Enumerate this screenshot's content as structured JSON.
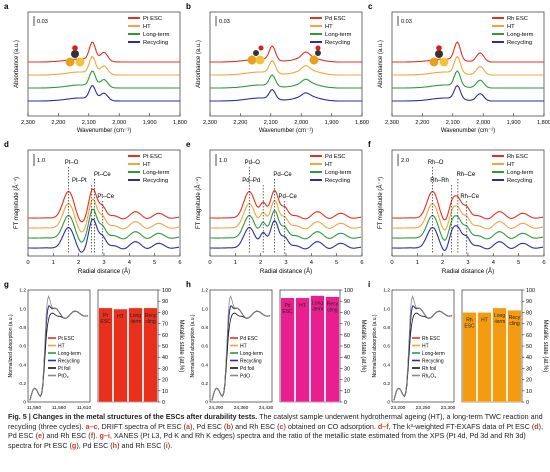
{
  "panels_drift": [
    {
      "letter": "a",
      "scale": "0.03",
      "xlabel": "Wavenumber (cm⁻¹)",
      "ylabel": "Absorbance (a.u.)",
      "xticks": [
        "2,300",
        "2,200",
        "2,100",
        "2,000",
        "1,900",
        "1,800"
      ],
      "legend": [
        "Pt ESC",
        "HT",
        "Long-term",
        "Recycling"
      ],
      "colors": [
        "#e8301c",
        "#f2a53b",
        "#2e9a3a",
        "#2a2ea8"
      ],
      "peak_positions": [
        2088,
        2050
      ],
      "molecule": "pt"
    },
    {
      "letter": "b",
      "scale": "0.03",
      "xlabel": "Wavenumber (cm⁻¹)",
      "ylabel": "Absorbance (a.u.)",
      "xticks": [
        "2,300",
        "2,200",
        "2,100",
        "2,000",
        "1,900",
        "1,800"
      ],
      "legend": [
        "Pd ESC",
        "HT",
        "Long-term",
        "Recycling"
      ],
      "colors": [
        "#e8301c",
        "#f2a53b",
        "#2e9a3a",
        "#2a2ea8"
      ],
      "peak_positions": [
        2095,
        1985
      ],
      "molecule": "pd"
    },
    {
      "letter": "c",
      "scale": "0.03",
      "xlabel": "Wavenumber (cm⁻¹)",
      "ylabel": "Absorbance (a.u.)",
      "xticks": [
        "2,300",
        "2,200",
        "2,100",
        "2,000",
        "1,900",
        "1,800"
      ],
      "legend": [
        "Rh ESC",
        "HT",
        "Long-term",
        "Recycling"
      ],
      "colors": [
        "#e8301c",
        "#f2a53b",
        "#2e9a3a",
        "#2a2ea8"
      ],
      "peak_positions": [
        2085,
        2010
      ],
      "molecule": "rh"
    }
  ],
  "panels_exafs": [
    {
      "letter": "d",
      "scale": "1.0",
      "xlabel": "Radial distance (Å)",
      "ylabel": "FT magnitude (Å⁻⁴)",
      "xticks": [
        "0",
        "1",
        "2",
        "3",
        "4",
        "5",
        "6"
      ],
      "legend": [
        "Pt ESC",
        "HT",
        "Long-term",
        "Recycling"
      ],
      "colors": [
        "#e8301c",
        "#f2a53b",
        "#2e9a3a",
        "#2a2ea8"
      ],
      "annotations": [
        "Pt–O",
        "Pt–Pt",
        "Pt–Ce",
        "Pt–Ce"
      ],
      "annotation_r": [
        1.6,
        2.5,
        2.62,
        2.95
      ]
    },
    {
      "letter": "e",
      "scale": "1.0",
      "xlabel": "Radial distance (Å)",
      "ylabel": "FT magnitude (Å⁻⁴)",
      "xticks": [
        "0",
        "1",
        "2",
        "3",
        "4",
        "5",
        "6"
      ],
      "legend": [
        "Pd ESC",
        "HT",
        "Long-term",
        "Recycling"
      ],
      "colors": [
        "#e8301c",
        "#f2a53b",
        "#2e9a3a",
        "#2a2ea8"
      ],
      "annotations": [
        "Pd–O",
        "Pd–Pd",
        "Pd–Ce",
        "Pd–Ce"
      ],
      "annotation_r": [
        1.55,
        2.1,
        2.55,
        2.95
      ]
    },
    {
      "letter": "f",
      "scale": "2.0",
      "xlabel": "Radial distance (Å)",
      "ylabel": "FT magnitude (Å⁻⁴)",
      "xticks": [
        "0",
        "1",
        "2",
        "3",
        "4",
        "5",
        "6"
      ],
      "legend": [
        "Rh ESC",
        "HT",
        "Long-term",
        "Recycling"
      ],
      "colors": [
        "#e8301c",
        "#f2a53b",
        "#2e9a3a",
        "#2a2ea8"
      ],
      "annotations": [
        "Rh–O",
        "Rh–Rh",
        "Rh–Ce",
        "Rh–Ce"
      ],
      "annotation_r": [
        1.6,
        2.35,
        2.6,
        2.95
      ]
    }
  ],
  "panels_xanes": [
    {
      "letter": "g",
      "ylabel": "Normalized absorption (a.u.)",
      "xlabel": "Energy (eV)",
      "xticks": [
        "11,560",
        "11,580",
        "11,610"
      ],
      "yticks": [
        "0",
        "0.2",
        "0.4",
        "0.6",
        "0.8",
        "1.0",
        "1.2"
      ],
      "legend": [
        "Pt ESC",
        "HT",
        "Long-term",
        "Recycling",
        "Pt foil",
        "PtO₂"
      ],
      "legend_colors": [
        "#e8301c",
        "#f2a53b",
        "#2e9a3a",
        "#2a2ea8",
        "#111111",
        "#888888"
      ],
      "bar_color": "#e8301c",
      "bar_labels": [
        "Pt ESC",
        "HT",
        "Long-term",
        "Recycling"
      ],
      "bar_values": [
        84,
        83,
        84,
        84
      ]
    },
    {
      "letter": "h",
      "ylabel": "Normalized absorption (a.u.)",
      "xlabel": "Energy (eV)",
      "xticks": [
        "24,290",
        "24,360",
        "24,430"
      ],
      "yticks": [
        "0",
        "0.2",
        "0.4",
        "0.6",
        "0.8",
        "1.0",
        "1.2"
      ],
      "legend": [
        "Pd ESC",
        "HT",
        "Long-term",
        "Recycling",
        "Pd foil",
        "PdO"
      ],
      "legend_colors": [
        "#e8301c",
        "#f2a53b",
        "#2e9a3a",
        "#2a2ea8",
        "#111111",
        "#888888"
      ],
      "bar_color": "#ea1f8f",
      "bar_labels": [
        "Pd ESC",
        "HT",
        "Long-term",
        "Recycling"
      ],
      "bar_values": [
        93,
        93,
        95,
        94
      ]
    },
    {
      "letter": "i",
      "ylabel": "Normalized absorption (a.u.)",
      "xlabel": "Energy (eV)",
      "xticks": [
        "23,200",
        "23,250",
        "23,300"
      ],
      "yticks": [
        "0",
        "0.2",
        "0.4",
        "0.6",
        "0.8",
        "1.0",
        "1.2"
      ],
      "legend": [
        "Rh ESC",
        "HT",
        "Long-term",
        "Recycling",
        "Rh foil",
        "Rh₂O₃"
      ],
      "legend_colors": [
        "#e8301c",
        "#f2a53b",
        "#2e9a3a",
        "#2a2ea8",
        "#111111",
        "#888888"
      ],
      "bar_color": "#f39c12",
      "bar_labels": [
        "Rh ESC",
        "HT",
        "Long-term",
        "Recycling"
      ],
      "bar_values": [
        80,
        80,
        84,
        82
      ]
    }
  ],
  "bar_axis": {
    "ylabel": "Metallic state (at.%)",
    "yticks": [
      "0",
      "10",
      "20",
      "30",
      "40",
      "50",
      "60",
      "70",
      "80",
      "90",
      "100"
    ],
    "ylim": [
      0,
      100
    ]
  },
  "caption": {
    "fig": "Fig. 5 | Changes in the metal structures of the ESCs after durability tests.",
    "p1": " The catalyst sample underwent hydrothermal ageing (HT), a long-term TWC reaction and recycling (three cycles). ",
    "ac": "a–c",
    "p2": ", DRIFT spectra of Pt ESC (",
    "a": "a",
    "p3": "), Pd ESC (",
    "b": "b",
    "p4": ") and Rh ESC (",
    "c": "c",
    "p5": ") obtained on CO adsorption. ",
    "df": "d–f",
    "p6": ", The k³-weighted FT-EXAFS data of Pt ESC (",
    "d": "d",
    "p7": "), Pd ESC (",
    "e": "e",
    "p8": ") and Rh ESC (",
    "f": "f",
    "p9": "). ",
    "gi": "g–i",
    "p10": ", XANES (Pt L3, Pd K and Rh K edges) spectra and the ratio of the metallic state estimated from the XPS (Pt 4d, Pd 3d and Rh 3d) spectra for Pt ESC (",
    "g": "g",
    "p11": "), Pd ESC (",
    "h": "h",
    "p12": ") and Rh ESC (",
    "i": "i",
    "p13": ")."
  }
}
